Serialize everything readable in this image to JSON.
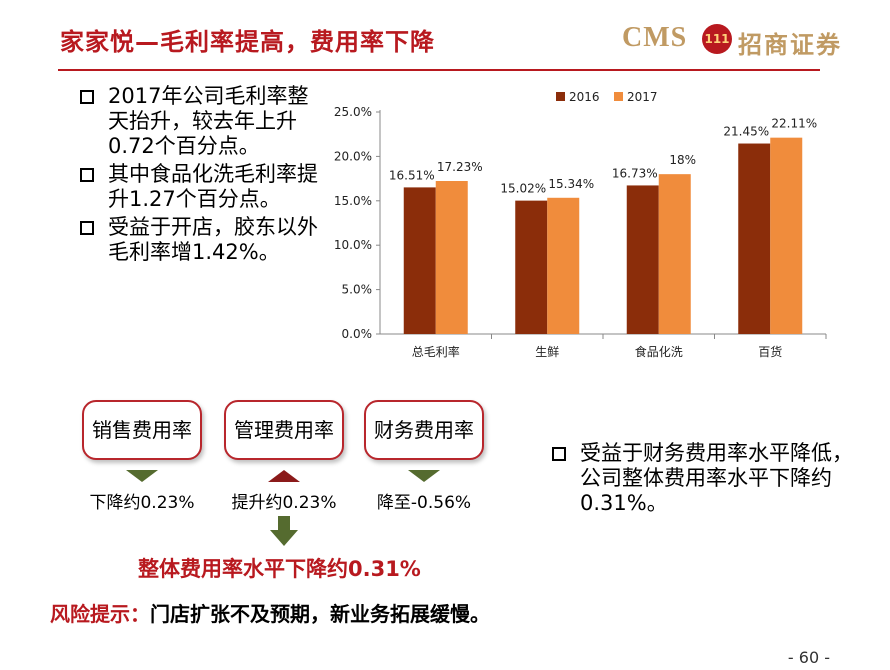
{
  "slide": {
    "title": "家家悦—毛利率提高，费用率下降",
    "page_number": "- 60 -"
  },
  "logo": {
    "latin": "CMS",
    "seal": "111",
    "chinese": "招商证券"
  },
  "bullets_left": [
    "2017年公司毛利率整天抬升，较去年上升0.72个百分点。",
    "其中食品化洗毛利率提升1.27个百分点。",
    "受益于开店，胶东以外毛利率增1.42%。"
  ],
  "bullet_right": "受益于财务费用率水平降低，公司整体费用率水平下降约0.31%。",
  "fee_boxes": [
    {
      "label": "销售费用率",
      "direction": "down",
      "change": "下降约0.23%"
    },
    {
      "label": "管理费用率",
      "direction": "up",
      "change": "提升约0.23%"
    },
    {
      "label": "财务费用率",
      "direction": "down",
      "change": "降至-0.56%"
    }
  ],
  "overall_change": "整体费用率水平下降约0.31%",
  "risk": {
    "label": "风险提示：",
    "text": "门店扩张不及预期，新业务拓展缓慢。"
  },
  "chart_data": {
    "type": "bar",
    "title": "",
    "categories": [
      "总毛利率",
      "生鲜",
      "食品化洗",
      "百货"
    ],
    "series": [
      {
        "name": "2016",
        "values": [
          16.51,
          15.02,
          16.73,
          21.45
        ],
        "labels": [
          "16.51%",
          "15.02%",
          "16.73%",
          "21.45%"
        ],
        "color": "#8b2d0a"
      },
      {
        "name": "2017",
        "values": [
          17.23,
          15.34,
          18.0,
          22.11
        ],
        "labels": [
          "17.23%",
          "15.34%",
          "18%",
          "22.11%"
        ],
        "color": "#f08c3c"
      }
    ],
    "ylim": [
      0,
      25
    ],
    "yticks": [
      "0.0%",
      "5.0%",
      "10.0%",
      "15.0%",
      "20.0%",
      "25.0%"
    ],
    "legend_position": "top",
    "grid": false
  },
  "colors": {
    "accent": "#b8191f",
    "brand_gold": "#c09a63",
    "arrow_down": "#556b2f",
    "arrow_up": "#8b1a1a"
  }
}
